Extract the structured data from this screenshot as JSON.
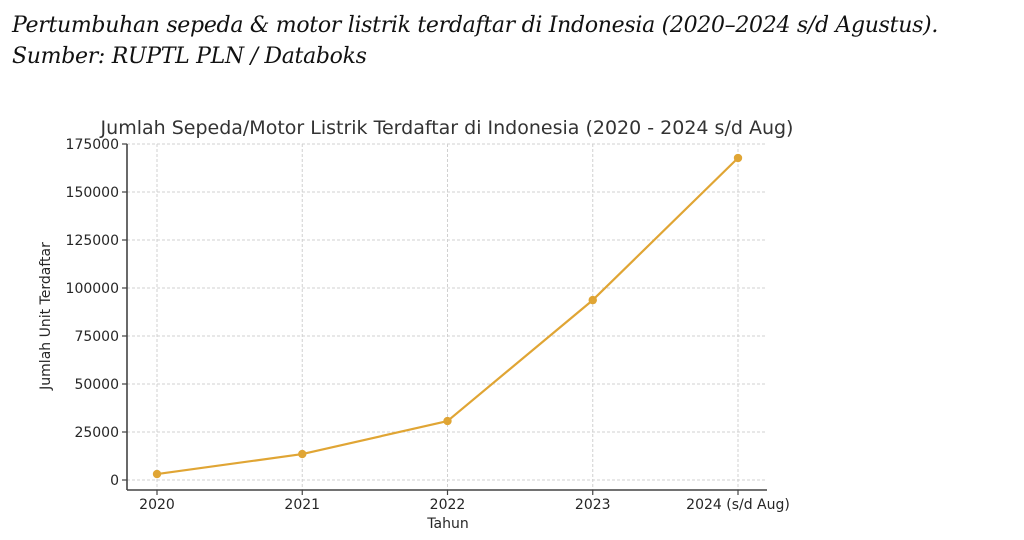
{
  "caption": {
    "line1": "Pertumbuhan sepeda & motor listrik terdaftar di Indonesia (2020–2024 s/d Agustus).",
    "line2": "Sumber: RUPTL PLN / Databoks"
  },
  "chart_data": {
    "type": "line",
    "title": "Jumlah Sepeda/Motor Listrik Terdaftar di Indonesia (2020 - 2024 s/d Aug)",
    "xlabel": "Tahun",
    "ylabel": "Jumlah Unit Terdaftar",
    "categories": [
      "2020",
      "2021",
      "2022",
      "2023",
      "2024 (s/d Aug)"
    ],
    "series": [
      {
        "name": "Jumlah Unit Terdaftar",
        "color": "#E0A534",
        "values": [
          3100,
          13500,
          30700,
          93700,
          167700
        ]
      }
    ],
    "yticks": [
      0,
      25000,
      50000,
      75000,
      100000,
      125000,
      150000,
      175000
    ],
    "ylim": [
      -5000,
      175000
    ],
    "grid": true,
    "marker": "circle",
    "legend": null
  }
}
